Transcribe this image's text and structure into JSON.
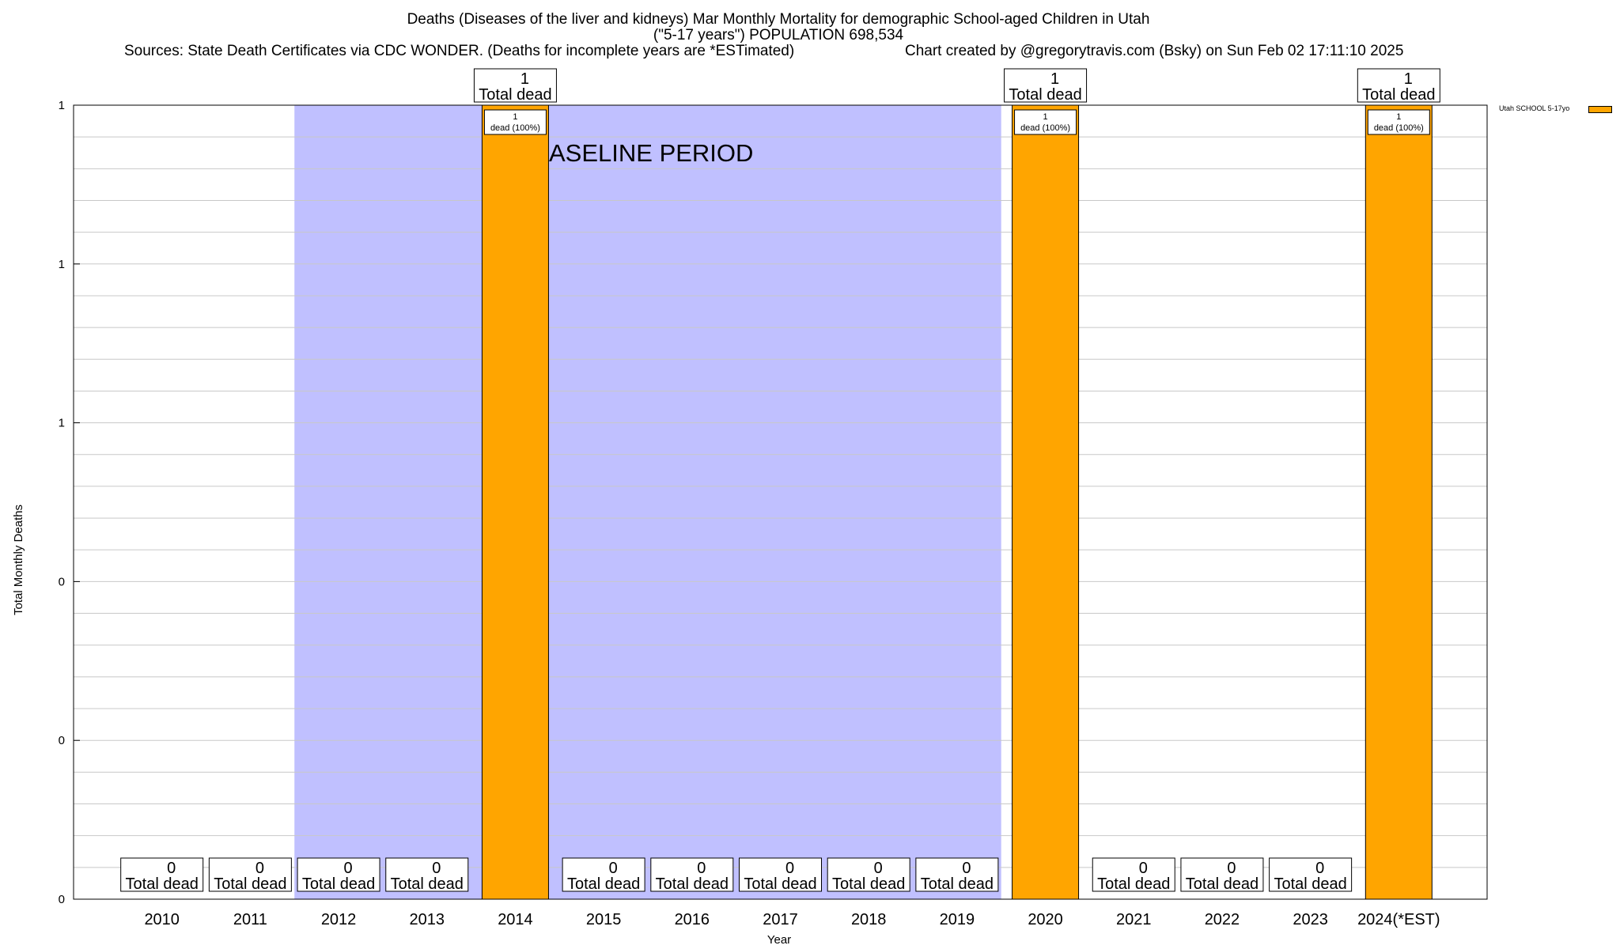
{
  "titles": {
    "line1": "Deaths (Diseases of the liver and kidneys) Mar Monthly Mortality for demographic School-aged Children in Utah",
    "line2": "(\"5-17 years\") POPULATION 698,534",
    "line3_left": "Sources: State Death Certificates via CDC WONDER. (Deaths for incomplete years are *ESTimated)",
    "line3_right": "Chart created by @gregorytravis.com (Bsky) on Sun Feb 02 17:11:10 2025"
  },
  "legend": {
    "label": "Utah SCHOOL 5-17yo",
    "color": "#FFA500"
  },
  "colors": {
    "bar": "#FFA500",
    "baseline": "#C0C0FF",
    "grid": "#C8C8C8"
  },
  "chart_data": {
    "type": "bar",
    "title": "Deaths (Diseases of the liver and kidneys) Mar Monthly Mortality for demographic School-aged Children in Utah",
    "xlabel": "Year",
    "ylabel": "Total Monthly Deaths",
    "ylim": [
      0,
      1
    ],
    "yticks": [
      "0",
      "0",
      "0",
      "1",
      "1",
      "1"
    ],
    "grid": true,
    "legend_position": "top-right",
    "categories": [
      "2010",
      "2011",
      "2012",
      "2013",
      "2014",
      "2015",
      "2016",
      "2017",
      "2018",
      "2019",
      "2020",
      "2021",
      "2022",
      "2023",
      "2024(*EST)"
    ],
    "series": [
      {
        "name": "Utah SCHOOL 5-17yo",
        "values": [
          0,
          0,
          0,
          0,
          1,
          0,
          0,
          0,
          0,
          0,
          1,
          0,
          0,
          0,
          1
        ]
      }
    ],
    "total_label": "Total dead",
    "bar_inner_label": "dead (100%)",
    "annotation": "BASELINE PERIOD",
    "baseline_period": [
      "2012",
      "2019"
    ]
  }
}
